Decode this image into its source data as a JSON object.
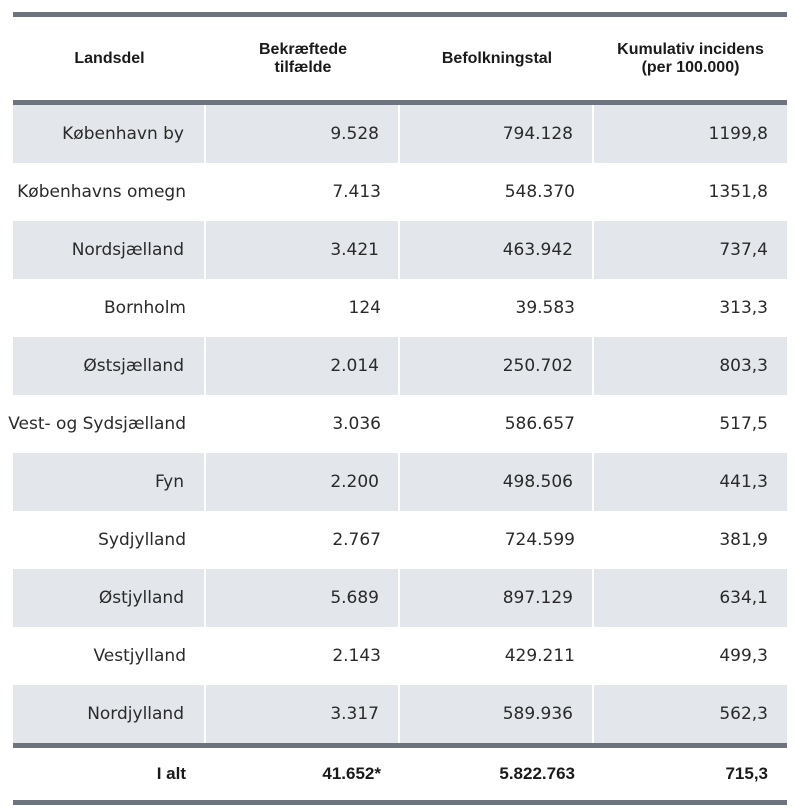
{
  "table": {
    "headers": [
      "Landsdel",
      "Bekræftede\ntilfælde",
      "Befolkningstal",
      "Kumulativ incidens\n(per 100.000)"
    ],
    "header_lines": [
      [
        "Landsdel"
      ],
      [
        "Bekræftede",
        "tilfælde"
      ],
      [
        "Befolkningstal"
      ],
      [
        "Kumulativ incidens",
        "(per 100.000)"
      ]
    ],
    "rows": [
      [
        "København by",
        "9.528",
        "794.128",
        "1199,8"
      ],
      [
        "Københavns omegn",
        "7.413",
        "548.370",
        "1351,8"
      ],
      [
        "Nordsjælland",
        "3.421",
        "463.942",
        "737,4"
      ],
      [
        "Bornholm",
        "124",
        "39.583",
        "313,3"
      ],
      [
        "Østsjælland",
        "2.014",
        "250.702",
        "803,3"
      ],
      [
        "Vest- og Sydsjælland",
        "3.036",
        "586.657",
        "517,5"
      ],
      [
        "Fyn",
        "2.200",
        "498.506",
        "441,3"
      ],
      [
        "Sydjylland",
        "2.767",
        "724.599",
        "381,9"
      ],
      [
        "Østjylland",
        "5.689",
        "897.129",
        "634,1"
      ],
      [
        "Vestjylland",
        "2.143",
        "429.211",
        "499,3"
      ],
      [
        "Nordjylland",
        "3.317",
        "589.936",
        "562,3"
      ]
    ],
    "total": [
      "I alt",
      "41.652*",
      "5.822.763",
      "715,3"
    ]
  },
  "colors": {
    "rule": "#6d7480",
    "shaded_row": "#e3e6ea"
  }
}
